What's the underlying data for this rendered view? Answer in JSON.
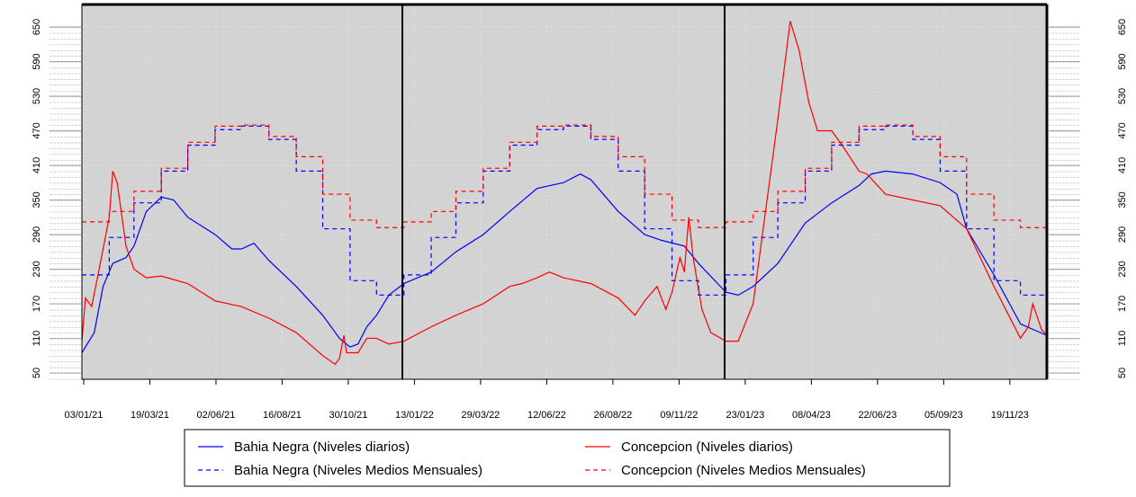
{
  "chart_data": {
    "type": "line",
    "xlim": [
      "01/01/21",
      "31/12/23"
    ],
    "xticks": [
      "03/01/21",
      "19/03/21",
      "02/06/21",
      "16/08/21",
      "30/10/21",
      "13/01/22",
      "29/03/22",
      "12/06/22",
      "26/08/22",
      "09/11/22",
      "23/01/23",
      "08/04/23",
      "22/06/23",
      "05/09/23",
      "19/11/23"
    ],
    "ylim": [
      39,
      689
    ],
    "yticks": [
      50,
      110,
      170,
      230,
      290,
      350,
      410,
      470,
      530,
      590,
      650
    ],
    "series": [
      {
        "name": "Bahia Negra (Niveles diarios)",
        "color": "#0000ff",
        "dash": false,
        "x": [
          "01/01/21",
          "15/01/21",
          "25/01/21",
          "05/02/21",
          "20/02/21",
          "01/03/21",
          "15/03/21",
          "01/04/21",
          "15/04/21",
          "01/05/21",
          "01/06/21",
          "20/06/21",
          "01/07/21",
          "15/07/21",
          "01/08/21",
          "01/09/21",
          "01/10/21",
          "20/10/21",
          "01/11/21",
          "10/11/21",
          "20/11/21",
          "01/12/21",
          "15/12/21",
          "01/01/22",
          "01/02/22",
          "01/03/22",
          "01/04/22",
          "01/05/22",
          "01/06/22",
          "01/07/22",
          "20/07/22",
          "01/08/22",
          "01/09/22",
          "01/10/22",
          "20/10/22",
          "15/11/22",
          "01/12/22",
          "01/01/23",
          "15/01/23",
          "01/02/23",
          "01/03/23",
          "01/04/23",
          "01/05/23",
          "01/06/23",
          "15/06/23",
          "01/07/23",
          "01/08/23",
          "01/09/23",
          "20/09/23",
          "01/10/23",
          "01/11/23",
          "01/12/23",
          "31/12/23"
        ],
        "values": [
          85,
          120,
          200,
          240,
          250,
          270,
          330,
          355,
          350,
          320,
          290,
          265,
          265,
          275,
          245,
          200,
          150,
          110,
          95,
          100,
          130,
          150,
          185,
          205,
          225,
          260,
          290,
          330,
          370,
          380,
          395,
          385,
          330,
          290,
          280,
          270,
          240,
          190,
          185,
          200,
          240,
          310,
          345,
          375,
          395,
          400,
          395,
          380,
          360,
          300,
          220,
          135,
          115
        ]
      },
      {
        "name": "Concepcion (Niveles diarios)",
        "color": "#ff0000",
        "dash": false,
        "x": [
          "01/01/21",
          "05/01/21",
          "12/01/21",
          "18/01/21",
          "01/02/21",
          "05/02/21",
          "10/02/21",
          "20/02/21",
          "01/03/21",
          "15/03/21",
          "01/04/21",
          "01/05/21",
          "01/06/21",
          "01/07/21",
          "01/08/21",
          "01/09/21",
          "01/10/21",
          "15/10/21",
          "20/10/21",
          "25/10/21",
          "28/10/21",
          "10/11/21",
          "20/11/21",
          "01/12/21",
          "15/12/21",
          "01/01/22",
          "01/02/22",
          "01/03/22",
          "01/04/22",
          "01/05/22",
          "15/05/22",
          "01/06/22",
          "15/06/22",
          "01/07/22",
          "01/08/22",
          "01/09/22",
          "20/09/22",
          "01/10/22",
          "15/10/22",
          "25/10/22",
          "01/11/22",
          "10/11/22",
          "15/11/22",
          "20/11/22",
          "25/11/22",
          "05/12/22",
          "15/12/22",
          "01/01/23",
          "15/01/23",
          "01/02/23",
          "15/02/23",
          "01/03/23",
          "15/03/23",
          "25/03/23",
          "05/04/23",
          "15/04/23",
          "01/05/23",
          "15/05/23",
          "01/06/23",
          "10/06/23",
          "01/07/23",
          "01/08/23",
          "01/09/23",
          "01/10/23",
          "01/11/23",
          "01/12/23",
          "10/12/23",
          "15/12/23",
          "25/12/23",
          "31/12/23"
        ],
        "values": [
          105,
          180,
          165,
          210,
          320,
          400,
          380,
          270,
          230,
          215,
          218,
          205,
          175,
          165,
          145,
          120,
          80,
          65,
          75,
          115,
          85,
          85,
          110,
          110,
          100,
          105,
          130,
          150,
          170,
          200,
          205,
          215,
          225,
          215,
          205,
          180,
          150,
          175,
          200,
          160,
          190,
          250,
          225,
          320,
          250,
          160,
          120,
          105,
          105,
          170,
          330,
          490,
          660,
          610,
          520,
          470,
          470,
          440,
          400,
          395,
          360,
          350,
          340,
          300,
          200,
          110,
          130,
          170,
          125,
          115
        ]
      },
      {
        "name": "Bahia Negra (Niveles Medios Mensuales)",
        "color": "#0000ff",
        "dash": true,
        "x": [
          "01/01/21",
          "01/02/21",
          "01/03/21",
          "01/04/21",
          "01/05/21",
          "01/06/21",
          "01/07/21",
          "01/08/21",
          "01/09/21",
          "01/10/21",
          "01/11/21",
          "01/12/21",
          "01/01/22",
          "01/02/22",
          "01/03/22",
          "01/04/22",
          "01/05/22",
          "01/06/22",
          "01/07/22",
          "01/08/22",
          "01/09/22",
          "01/10/22",
          "01/11/22",
          "01/12/22",
          "01/01/23",
          "01/02/23",
          "01/03/23",
          "01/04/23",
          "01/05/23",
          "01/06/23",
          "01/07/23",
          "01/08/23",
          "01/09/23",
          "01/10/23",
          "01/11/23",
          "01/12/23"
        ],
        "values": [
          220,
          285,
          345,
          400,
          445,
          472,
          478,
          455,
          400,
          300,
          210,
          185,
          220,
          285,
          345,
          400,
          445,
          472,
          478,
          455,
          400,
          300,
          210,
          185,
          220,
          285,
          345,
          400,
          445,
          472,
          478,
          455,
          400,
          300,
          210,
          185
        ]
      },
      {
        "name": "Concepcion (Niveles Medios Mensuales)",
        "color": "#ff0000",
        "dash": true,
        "x": [
          "01/01/21",
          "01/02/21",
          "01/03/21",
          "01/04/21",
          "01/05/21",
          "01/06/21",
          "01/07/21",
          "01/08/21",
          "01/09/21",
          "01/10/21",
          "01/11/21",
          "01/12/21",
          "01/01/22",
          "01/02/22",
          "01/03/22",
          "01/04/22",
          "01/05/22",
          "01/06/22",
          "01/07/22",
          "01/08/22",
          "01/09/22",
          "01/10/22",
          "01/11/22",
          "01/12/22",
          "01/01/23",
          "01/02/23",
          "01/03/23",
          "01/04/23",
          "01/05/23",
          "01/06/23",
          "01/07/23",
          "01/08/23",
          "01/09/23",
          "01/10/23",
          "01/11/23",
          "01/12/23"
        ],
        "values": [
          312,
          330,
          365,
          405,
          450,
          478,
          480,
          460,
          425,
          360,
          315,
          302,
          312,
          330,
          365,
          405,
          450,
          478,
          480,
          460,
          425,
          360,
          315,
          302,
          312,
          330,
          365,
          405,
          450,
          478,
          480,
          460,
          425,
          360,
          315,
          302
        ]
      }
    ]
  }
}
